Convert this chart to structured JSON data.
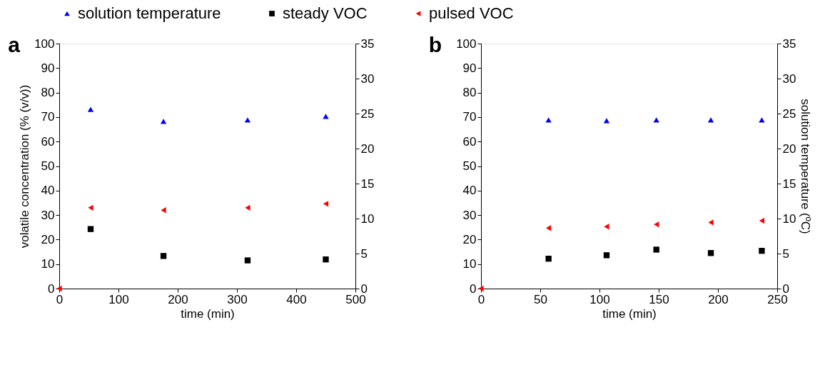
{
  "chart_data": [
    {
      "type": "scatter",
      "annotations": [
        "a"
      ],
      "xlabel": "time (min)",
      "ylabel": "volatile concentration (% (v/v))",
      "xlim": [
        0,
        500
      ],
      "xticks": [
        0,
        100,
        200,
        300,
        400,
        500
      ],
      "ylim": [
        0,
        100
      ],
      "yticks": [
        0,
        10,
        20,
        30,
        40,
        50,
        60,
        70,
        80,
        90,
        100
      ],
      "y2lim": [
        0,
        35
      ],
      "y2ticks": [
        0,
        5,
        10,
        15,
        20,
        25,
        30,
        35
      ],
      "legend": "top",
      "grid": false,
      "series": [
        {
          "name": "solution temperature",
          "color": "#0000ff",
          "marker": "triangle",
          "axis": "y2",
          "x": [
            53,
            176,
            318,
            450
          ],
          "values": [
            25.6,
            23.9,
            24.1,
            24.6
          ]
        },
        {
          "name": "steady VOC",
          "color": "#000000",
          "marker": "square",
          "x": [
            53,
            176,
            318,
            450
          ],
          "values": [
            24.3,
            13.3,
            11.5,
            11.9
          ]
        },
        {
          "name": "pulsed VOC",
          "color": "#ff0000",
          "marker": "triangle-left",
          "x": [
            0,
            53,
            176,
            318,
            450
          ],
          "values": [
            0,
            33,
            32,
            33,
            34.6
          ]
        }
      ]
    },
    {
      "type": "scatter",
      "annotations": [
        "b"
      ],
      "xlabel": "time (min)",
      "y2label": "solution temperature (ºC)",
      "xlim": [
        0,
        250
      ],
      "xticks": [
        0,
        50,
        100,
        150,
        200,
        250
      ],
      "ylim": [
        0,
        100
      ],
      "yticks": [
        0,
        10,
        20,
        30,
        40,
        50,
        60,
        70,
        80,
        90,
        100
      ],
      "y2lim": [
        0,
        35
      ],
      "y2ticks": [
        0,
        5,
        10,
        15,
        20,
        25,
        30,
        35
      ],
      "grid": false,
      "series": [
        {
          "name": "solution temperature",
          "color": "#0000ff",
          "marker": "triangle",
          "axis": "y2",
          "x": [
            57,
            106,
            148,
            194,
            237
          ],
          "values": [
            24.1,
            24.0,
            24.1,
            24.1,
            24.1
          ]
        },
        {
          "name": "steady VOC",
          "color": "#000000",
          "marker": "square",
          "x": [
            57,
            106,
            148,
            194,
            237
          ],
          "values": [
            12.2,
            13.6,
            15.9,
            14.5,
            15.4
          ]
        },
        {
          "name": "pulsed VOC",
          "color": "#ff0000",
          "marker": "triangle-left",
          "x": [
            0,
            57,
            106,
            148,
            194,
            237
          ],
          "values": [
            0,
            24.7,
            25.3,
            26.2,
            27,
            27.7
          ]
        }
      ]
    }
  ]
}
